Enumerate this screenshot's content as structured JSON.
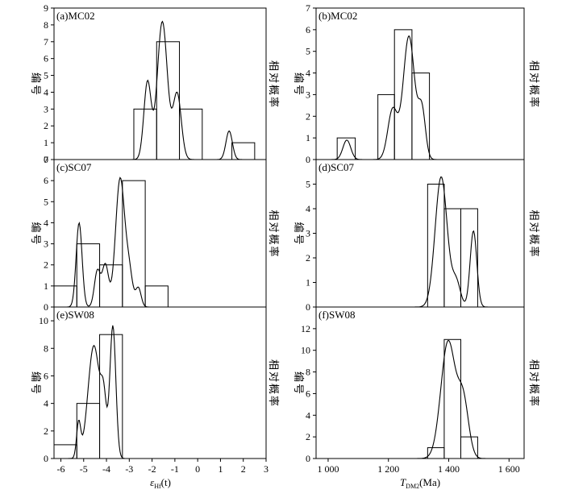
{
  "chart_data": [
    {
      "id": "a",
      "type": "bar",
      "title": "(a)MC02",
      "ylabel": "编号",
      "y2label": "相对概率",
      "xlim": [
        -6.3,
        3
      ],
      "ylim": [
        0,
        9
      ],
      "yticks": [
        0,
        1,
        2,
        3,
        4,
        5,
        6,
        7,
        8,
        9
      ],
      "bins": [
        {
          "x0": -2.8,
          "x1": -1.8,
          "value": 3
        },
        {
          "x0": -1.8,
          "x1": -0.8,
          "value": 7
        },
        {
          "x0": -0.8,
          "x1": 0.2,
          "value": 3
        },
        {
          "x0": 1.5,
          "x1": 2.5,
          "value": 1
        }
      ],
      "curve": [
        {
          "mu": -2.2,
          "sigma": 0.16,
          "peak": 4.6
        },
        {
          "mu": -1.55,
          "sigma": 0.22,
          "peak": 8.2
        },
        {
          "mu": -0.9,
          "sigma": 0.18,
          "peak": 3.9
        },
        {
          "mu": 1.38,
          "sigma": 0.14,
          "peak": 1.7
        }
      ]
    },
    {
      "id": "b",
      "type": "bar",
      "title": "(b)MC02",
      "ylabel": "编号",
      "y2label": "相对概率",
      "xlim": [
        960,
        1650
      ],
      "ylim": [
        0,
        7
      ],
      "yticks": [
        0,
        1,
        2,
        3,
        4,
        5,
        6,
        7
      ],
      "bins": [
        {
          "x0": 1030,
          "x1": 1090,
          "value": 1
        },
        {
          "x0": 1165,
          "x1": 1220,
          "value": 3
        },
        {
          "x0": 1220,
          "x1": 1278,
          "value": 6
        },
        {
          "x0": 1278,
          "x1": 1336,
          "value": 4
        }
      ],
      "curve": [
        {
          "mu": 1062,
          "sigma": 13,
          "peak": 0.9
        },
        {
          "mu": 1214,
          "sigma": 16,
          "peak": 2.3
        },
        {
          "mu": 1268,
          "sigma": 19,
          "peak": 5.7
        },
        {
          "mu": 1311,
          "sigma": 12,
          "peak": 2.2
        }
      ]
    },
    {
      "id": "c",
      "type": "bar",
      "title": "(c)SC07",
      "ylabel": "编号",
      "y2label": "相对概率",
      "xlim": [
        -6.3,
        3
      ],
      "ylim": [
        0,
        7
      ],
      "yticks": [
        0,
        1,
        2,
        3,
        4,
        5,
        6,
        7
      ],
      "bins": [
        {
          "x0": -6.3,
          "x1": -5.3,
          "value": 1
        },
        {
          "x0": -5.3,
          "x1": -4.3,
          "value": 3
        },
        {
          "x0": -4.3,
          "x1": -3.3,
          "value": 2
        },
        {
          "x0": -3.3,
          "x1": -2.3,
          "value": 6
        },
        {
          "x0": -2.3,
          "x1": -1.3,
          "value": 1
        }
      ],
      "curve": [
        {
          "mu": -5.2,
          "sigma": 0.13,
          "peak": 4.0
        },
        {
          "mu": -4.4,
          "sigma": 0.13,
          "peak": 1.7
        },
        {
          "mu": -4.05,
          "sigma": 0.14,
          "peak": 2.0
        },
        {
          "mu": -3.4,
          "sigma": 0.2,
          "peak": 6.1
        },
        {
          "mu": -3.0,
          "sigma": 0.15,
          "peak": 1.5
        },
        {
          "mu": -2.6,
          "sigma": 0.12,
          "peak": 0.9
        }
      ]
    },
    {
      "id": "d",
      "type": "bar",
      "title": "(d)SC07",
      "ylabel": "编号",
      "y2label": "相对概率",
      "xlim": [
        960,
        1650
      ],
      "ylim": [
        0,
        6
      ],
      "yticks": [
        0,
        1,
        2,
        3,
        4,
        5
      ],
      "bins": [
        {
          "x0": 1330,
          "x1": 1385,
          "value": 5
        },
        {
          "x0": 1385,
          "x1": 1440,
          "value": 4
        },
        {
          "x0": 1440,
          "x1": 1496,
          "value": 4
        }
      ],
      "curve": [
        {
          "mu": 1375,
          "sigma": 20,
          "peak": 5.3
        },
        {
          "mu": 1425,
          "sigma": 14,
          "peak": 1.0
        },
        {
          "mu": 1482,
          "sigma": 11,
          "peak": 3.1
        }
      ]
    },
    {
      "id": "e",
      "type": "bar",
      "title": "(e)SW08",
      "ylabel": "编号",
      "y2label": "相对概率",
      "xlim": [
        -6.3,
        3
      ],
      "ylim": [
        0,
        11
      ],
      "yticks": [
        0,
        2,
        4,
        6,
        8,
        10
      ],
      "xticks": [
        -6,
        -5,
        -4,
        -3,
        -2,
        -1,
        0,
        1,
        2,
        3
      ],
      "xlabel": "εHf(t)",
      "bins": [
        {
          "x0": -6.3,
          "x1": -5.3,
          "value": 1
        },
        {
          "x0": -5.3,
          "x1": -4.3,
          "value": 4
        },
        {
          "x0": -4.3,
          "x1": -3.3,
          "value": 9
        }
      ],
      "curve": [
        {
          "mu": -5.22,
          "sigma": 0.09,
          "peak": 2.5
        },
        {
          "mu": -4.55,
          "sigma": 0.26,
          "peak": 8.2
        },
        {
          "mu": -4.12,
          "sigma": 0.12,
          "peak": 3.4
        },
        {
          "mu": -3.72,
          "sigma": 0.13,
          "peak": 9.6
        }
      ]
    },
    {
      "id": "f",
      "type": "bar",
      "title": "(f)SW08",
      "ylabel": "编号",
      "y2label": "相对概率",
      "xlim": [
        960,
        1650
      ],
      "ylim": [
        0,
        14
      ],
      "yticks": [
        0,
        2,
        4,
        6,
        8,
        10,
        12
      ],
      "xticks": [
        1000,
        1200,
        1400,
        1600
      ],
      "xticklabels": [
        "1 000",
        "1 200",
        "1 400",
        "1 600"
      ],
      "xlabel": "TDM2(Ma)",
      "bins": [
        {
          "x0": 1330,
          "x1": 1385,
          "value": 1
        },
        {
          "x0": 1385,
          "x1": 1440,
          "value": 11
        },
        {
          "x0": 1440,
          "x1": 1496,
          "value": 2
        }
      ],
      "curve": [
        {
          "mu": 1398,
          "sigma": 24,
          "peak": 10.8
        },
        {
          "mu": 1448,
          "sigma": 18,
          "peak": 5.2
        }
      ]
    }
  ]
}
